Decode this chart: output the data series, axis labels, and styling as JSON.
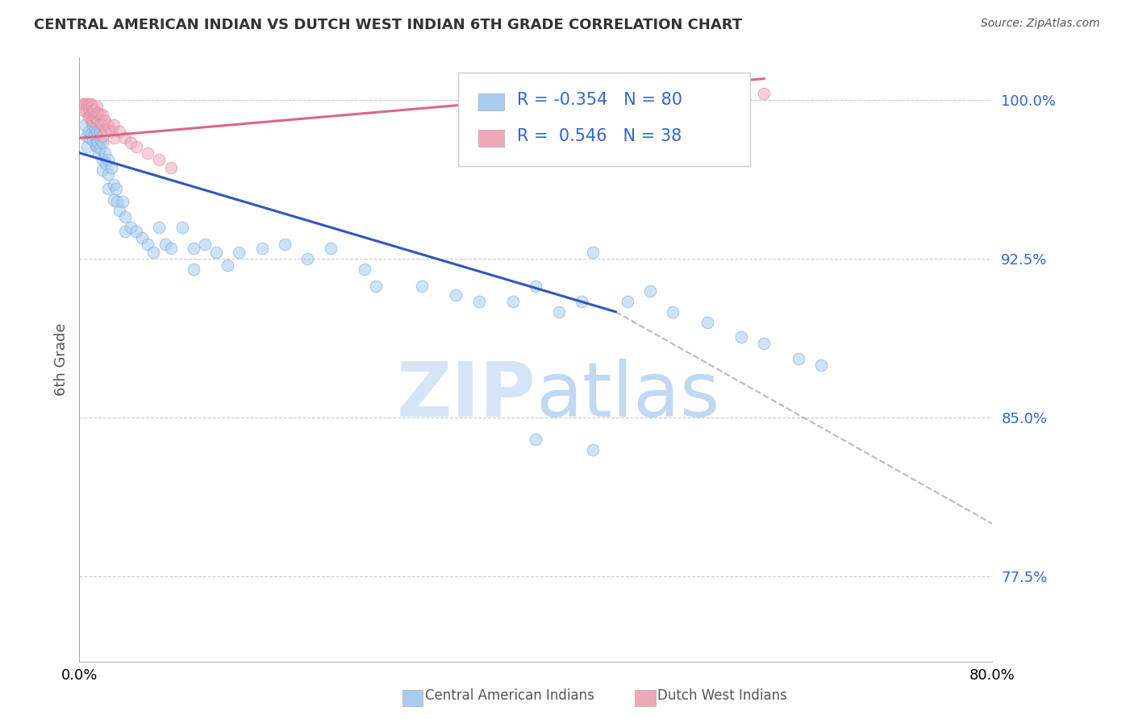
{
  "title": "CENTRAL AMERICAN INDIAN VS DUTCH WEST INDIAN 6TH GRADE CORRELATION CHART",
  "source": "Source: ZipAtlas.com",
  "ylabel": "6th Grade",
  "xmin": 0.0,
  "xmax": 0.8,
  "ymin": 0.735,
  "ymax": 1.02,
  "yticks": [
    0.775,
    0.85,
    0.925,
    1.0
  ],
  "ytick_labels": [
    "77.5%",
    "85.0%",
    "92.5%",
    "100.0%"
  ],
  "xticks": [
    0.0,
    0.1,
    0.2,
    0.3,
    0.4,
    0.5,
    0.6,
    0.7,
    0.8
  ],
  "xtick_labels": [
    "0.0%",
    "",
    "",
    "",
    "",
    "",
    "",
    "",
    "80.0%"
  ],
  "legend_R_blue": "-0.354",
  "legend_N_blue": "80",
  "legend_R_pink": "0.546",
  "legend_N_pink": "38",
  "blue_color": "#A8CCF0",
  "pink_color": "#F0A8B8",
  "blue_line_color": "#3355BB",
  "pink_line_color": "#DD6688",
  "watermark_zip": "ZIP",
  "watermark_atlas": "atlas",
  "blue_scatter_x": [
    0.005,
    0.006,
    0.007,
    0.008,
    0.008,
    0.009,
    0.01,
    0.01,
    0.01,
    0.012,
    0.012,
    0.013,
    0.013,
    0.014,
    0.014,
    0.015,
    0.015,
    0.015,
    0.016,
    0.016,
    0.017,
    0.018,
    0.018,
    0.019,
    0.02,
    0.02,
    0.02,
    0.022,
    0.023,
    0.025,
    0.025,
    0.025,
    0.028,
    0.03,
    0.03,
    0.032,
    0.033,
    0.035,
    0.038,
    0.04,
    0.04,
    0.045,
    0.05,
    0.055,
    0.06,
    0.065,
    0.07,
    0.075,
    0.08,
    0.09,
    0.1,
    0.1,
    0.11,
    0.12,
    0.13,
    0.14,
    0.16,
    0.18,
    0.2,
    0.22,
    0.25,
    0.26,
    0.3,
    0.33,
    0.35,
    0.38,
    0.4,
    0.42,
    0.44,
    0.45,
    0.48,
    0.5,
    0.52,
    0.55,
    0.58,
    0.6,
    0.63,
    0.65,
    0.4,
    0.45
  ],
  "blue_scatter_y": [
    0.988,
    0.983,
    0.978,
    0.993,
    0.985,
    0.982,
    0.995,
    0.99,
    0.984,
    0.988,
    0.981,
    0.99,
    0.984,
    0.987,
    0.979,
    0.985,
    0.992,
    0.978,
    0.988,
    0.98,
    0.975,
    0.985,
    0.977,
    0.981,
    0.98,
    0.972,
    0.967,
    0.975,
    0.97,
    0.972,
    0.965,
    0.958,
    0.968,
    0.96,
    0.953,
    0.958,
    0.952,
    0.948,
    0.952,
    0.945,
    0.938,
    0.94,
    0.938,
    0.935,
    0.932,
    0.928,
    0.94,
    0.932,
    0.93,
    0.94,
    0.93,
    0.92,
    0.932,
    0.928,
    0.922,
    0.928,
    0.93,
    0.932,
    0.925,
    0.93,
    0.92,
    0.912,
    0.912,
    0.908,
    0.905,
    0.905,
    0.912,
    0.9,
    0.905,
    0.928,
    0.905,
    0.91,
    0.9,
    0.895,
    0.888,
    0.885,
    0.878,
    0.875,
    0.84,
    0.835
  ],
  "pink_scatter_x": [
    0.003,
    0.004,
    0.005,
    0.006,
    0.007,
    0.008,
    0.008,
    0.009,
    0.01,
    0.01,
    0.011,
    0.012,
    0.012,
    0.013,
    0.014,
    0.015,
    0.015,
    0.016,
    0.017,
    0.018,
    0.019,
    0.02,
    0.02,
    0.02,
    0.022,
    0.023,
    0.025,
    0.028,
    0.03,
    0.03,
    0.035,
    0.04,
    0.045,
    0.05,
    0.06,
    0.07,
    0.08,
    0.6
  ],
  "pink_scatter_y": [
    0.998,
    0.995,
    0.998,
    0.995,
    0.998,
    0.998,
    0.992,
    0.995,
    0.998,
    0.993,
    0.997,
    0.995,
    0.99,
    0.995,
    0.992,
    0.997,
    0.991,
    0.994,
    0.99,
    0.993,
    0.989,
    0.993,
    0.988,
    0.983,
    0.99,
    0.986,
    0.988,
    0.985,
    0.988,
    0.982,
    0.985,
    0.982,
    0.98,
    0.978,
    0.975,
    0.972,
    0.968,
    1.003
  ],
  "blue_trend_x0": 0.0,
  "blue_trend_x1": 0.47,
  "blue_trend_y0": 0.975,
  "blue_trend_y1": 0.9,
  "dashed_trend_x0": 0.47,
  "dashed_trend_x1": 0.8,
  "dashed_trend_y0": 0.9,
  "dashed_trend_y1": 0.8,
  "pink_trend_x0": 0.0,
  "pink_trend_x1": 0.6,
  "pink_trend_y0": 0.982,
  "pink_trend_y1": 1.01
}
